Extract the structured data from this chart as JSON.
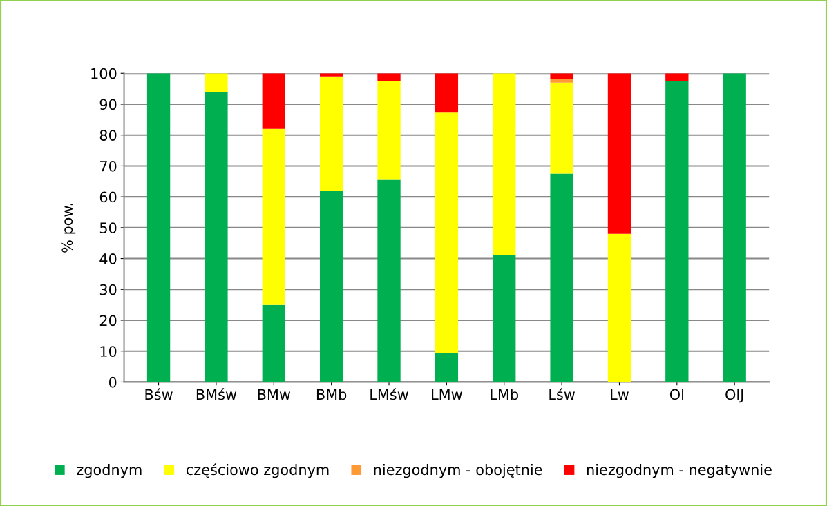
{
  "chart_data": {
    "type": "bar",
    "stacked": true,
    "ylabel": "% pow.",
    "categories": [
      "Bśw",
      "BMśw",
      "BMw",
      "BMb",
      "LMśw",
      "LMw",
      "LMb",
      "Lśw",
      "Lw",
      "Ol",
      "OlJ"
    ],
    "series": [
      {
        "name": "zgodnym",
        "color": "#00b050",
        "values": [
          100,
          94,
          25,
          62,
          65.5,
          9.5,
          41,
          67.5,
          0,
          97.5,
          100
        ]
      },
      {
        "name": "częściowo zgodnym",
        "color": "#ffff00",
        "values": [
          0,
          6,
          57,
          37,
          32,
          78,
          59,
          29.5,
          48,
          0,
          0
        ]
      },
      {
        "name": "niezgodnym - obojętnie",
        "color": "#ff9933",
        "values": [
          0,
          0,
          0,
          0,
          0,
          0,
          0,
          1.2,
          0,
          0,
          0
        ]
      },
      {
        "name": "niezgodnym - negatywnie",
        "color": "#ff0000",
        "values": [
          0,
          0,
          18,
          1,
          2.5,
          12.5,
          0,
          1.8,
          52,
          2.5,
          0
        ]
      }
    ],
    "ylim": [
      0,
      100
    ],
    "yticks": [
      0,
      10,
      20,
      30,
      40,
      50,
      60,
      70,
      80,
      90,
      100
    ],
    "grid": "y",
    "legend": "bottom"
  }
}
